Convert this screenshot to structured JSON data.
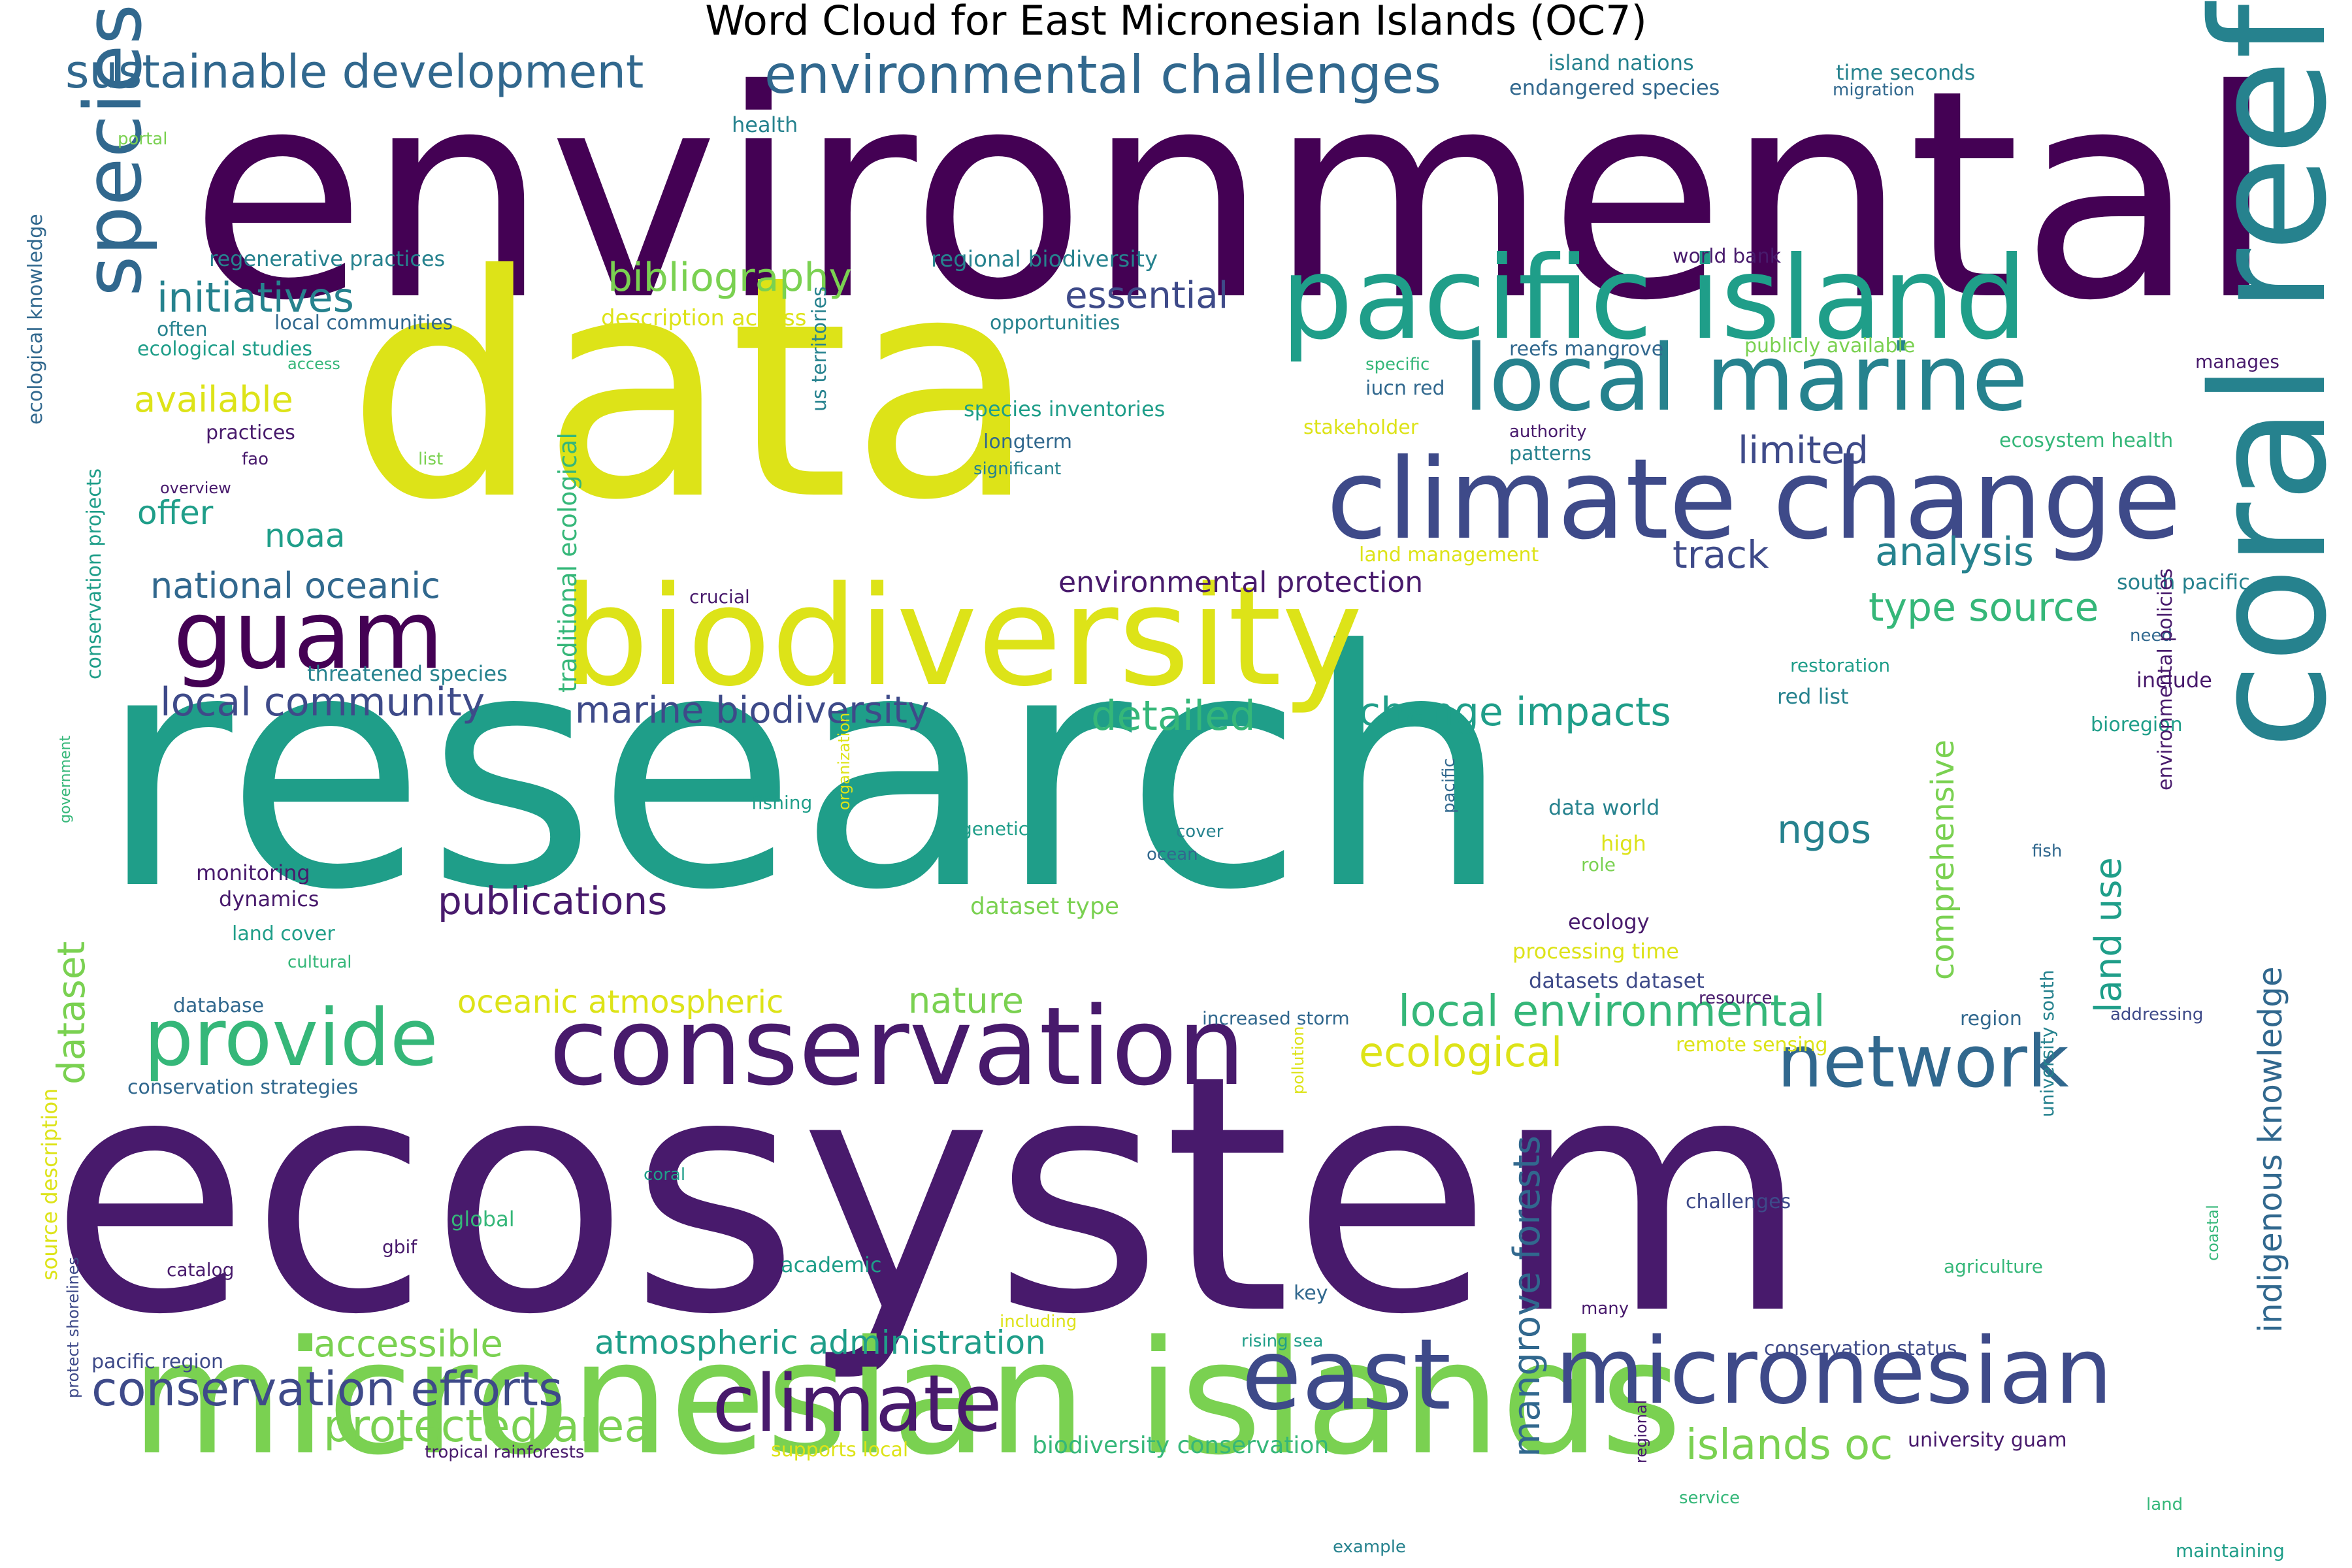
{
  "title": "Word Cloud for East Micronesian Islands (OC7)",
  "colors": {
    "purple_dark": "#440154",
    "purple": "#481a6c",
    "indigo": "#3e4a89",
    "slate": "#31688e",
    "teal": "#26828e",
    "green_teal": "#1f9e89",
    "green": "#35b779",
    "lime": "#7ad151",
    "yellow": "#dde318"
  },
  "words": [
    {
      "t": "environmental",
      "c": "purple_dark"
    },
    {
      "t": "data",
      "c": "yellow"
    },
    {
      "t": "research",
      "c": "green_teal"
    },
    {
      "t": "ecosystem",
      "c": "purple"
    },
    {
      "t": "micronesian islands",
      "c": "lime"
    },
    {
      "t": "coral reef",
      "c": "teal"
    },
    {
      "t": "biodiversity",
      "c": "yellow"
    },
    {
      "t": "climate change",
      "c": "indigo"
    },
    {
      "t": "pacific island",
      "c": "green_teal"
    },
    {
      "t": "conservation",
      "c": "purple"
    },
    {
      "t": "local marine",
      "c": "teal"
    },
    {
      "t": "east",
      "c": "indigo"
    },
    {
      "t": "micronesian",
      "c": "indigo"
    },
    {
      "t": "guam",
      "c": "purple_dark"
    },
    {
      "t": "provide",
      "c": "green"
    },
    {
      "t": "species",
      "c": "slate"
    },
    {
      "t": "climate",
      "c": "purple"
    },
    {
      "t": "network",
      "c": "slate"
    },
    {
      "t": "environmental challenges",
      "c": "slate"
    },
    {
      "t": "sustainable development",
      "c": "slate"
    },
    {
      "t": "conservation efforts",
      "c": "indigo"
    },
    {
      "t": "local environmental",
      "c": "green"
    },
    {
      "t": "protected area",
      "c": "lime"
    },
    {
      "t": "islands oc",
      "c": "lime"
    },
    {
      "t": "initiatives",
      "c": "teal"
    },
    {
      "t": "bibliography",
      "c": "lime"
    },
    {
      "t": "local community",
      "c": "indigo"
    },
    {
      "t": "publications",
      "c": "purple"
    },
    {
      "t": "dataset",
      "c": "lime"
    },
    {
      "t": "ngos",
      "c": "teal"
    },
    {
      "t": "analysis",
      "c": "teal"
    },
    {
      "t": "type source",
      "c": "green"
    },
    {
      "t": "change impacts",
      "c": "green_teal"
    },
    {
      "t": "detailed",
      "c": "green"
    },
    {
      "t": "marine biodiversity",
      "c": "indigo"
    },
    {
      "t": "available",
      "c": "yellow"
    },
    {
      "t": "essential",
      "c": "indigo"
    },
    {
      "t": "limited",
      "c": "indigo"
    },
    {
      "t": "national oceanic",
      "c": "slate"
    },
    {
      "t": "accessible",
      "c": "lime"
    },
    {
      "t": "atmospheric administration",
      "c": "green_teal"
    },
    {
      "t": "oceanic atmospheric",
      "c": "yellow"
    },
    {
      "t": "nature",
      "c": "lime"
    },
    {
      "t": "ecological",
      "c": "yellow"
    },
    {
      "t": "mangrove forests",
      "c": "slate"
    },
    {
      "t": "indigenous knowledge",
      "c": "slate"
    },
    {
      "t": "comprehensive",
      "c": "lime"
    },
    {
      "t": "land use",
      "c": "green_teal"
    },
    {
      "t": "track",
      "c": "indigo"
    },
    {
      "t": "noaa",
      "c": "green_teal"
    },
    {
      "t": "offer",
      "c": "green_teal"
    },
    {
      "t": "environmental protection",
      "c": "purple"
    },
    {
      "t": "traditional ecological",
      "c": "green"
    },
    {
      "t": "island nations",
      "c": "teal"
    },
    {
      "t": "endangered species",
      "c": "slate"
    },
    {
      "t": "time seconds",
      "c": "teal"
    },
    {
      "t": "migration",
      "c": "slate"
    },
    {
      "t": "health",
      "c": "teal"
    },
    {
      "t": "portal",
      "c": "lime"
    },
    {
      "t": "regenerative practices",
      "c": "teal"
    },
    {
      "t": "regional biodiversity",
      "c": "teal"
    },
    {
      "t": "world bank",
      "c": "purple"
    },
    {
      "t": "often",
      "c": "teal"
    },
    {
      "t": "local communities",
      "c": "slate"
    },
    {
      "t": "ecological studies",
      "c": "green_teal"
    },
    {
      "t": "access",
      "c": "green"
    },
    {
      "t": "description access",
      "c": "yellow"
    },
    {
      "t": "opportunities",
      "c": "teal"
    },
    {
      "t": "specific",
      "c": "green"
    },
    {
      "t": "reefs mangrove",
      "c": "slate"
    },
    {
      "t": "publicly available",
      "c": "lime"
    },
    {
      "t": "iucn red",
      "c": "slate"
    },
    {
      "t": "manages",
      "c": "purple"
    },
    {
      "t": "species inventories",
      "c": "green_teal"
    },
    {
      "t": "stakeholder",
      "c": "yellow"
    },
    {
      "t": "authority",
      "c": "purple"
    },
    {
      "t": "practices",
      "c": "purple"
    },
    {
      "t": "longterm",
      "c": "slate"
    },
    {
      "t": "ecosystem health",
      "c": "green"
    },
    {
      "t": "fao",
      "c": "purple"
    },
    {
      "t": "list",
      "c": "lime"
    },
    {
      "t": "patterns",
      "c": "teal"
    },
    {
      "t": "overview",
      "c": "purple"
    },
    {
      "t": "significant",
      "c": "teal"
    },
    {
      "t": "us territories",
      "c": "teal"
    },
    {
      "t": "land management",
      "c": "yellow"
    },
    {
      "t": "ecological knowledge",
      "c": "slate"
    },
    {
      "t": "crucial",
      "c": "purple"
    },
    {
      "t": "south pacific",
      "c": "teal"
    },
    {
      "t": "threatened species",
      "c": "teal"
    },
    {
      "t": "restoration",
      "c": "green_teal"
    },
    {
      "t": "need",
      "c": "slate"
    },
    {
      "t": "include",
      "c": "purple"
    },
    {
      "t": "red list",
      "c": "teal"
    },
    {
      "t": "bioregion",
      "c": "green_teal"
    },
    {
      "t": "conservation projects",
      "c": "green_teal"
    },
    {
      "t": "fishing",
      "c": "green_teal"
    },
    {
      "t": "genetic",
      "c": "green_teal"
    },
    {
      "t": "cover",
      "c": "teal"
    },
    {
      "t": "ocean",
      "c": "slate"
    },
    {
      "t": "data world",
      "c": "teal"
    },
    {
      "t": "high",
      "c": "yellow"
    },
    {
      "t": "role",
      "c": "lime"
    },
    {
      "t": "organization",
      "c": "yellow"
    },
    {
      "t": "pacific",
      "c": "slate"
    },
    {
      "t": "fish",
      "c": "slate"
    },
    {
      "t": "environmental policies",
      "c": "purple"
    },
    {
      "t": "government",
      "c": "green"
    },
    {
      "t": "monitoring",
      "c": "purple"
    },
    {
      "t": "dynamics",
      "c": "purple"
    },
    {
      "t": "dataset type",
      "c": "lime"
    },
    {
      "t": "ecology",
      "c": "purple"
    },
    {
      "t": "land cover",
      "c": "green_teal"
    },
    {
      "t": "processing time",
      "c": "yellow"
    },
    {
      "t": "cultural",
      "c": "green"
    },
    {
      "t": "datasets dataset",
      "c": "indigo"
    },
    {
      "t": "database",
      "c": "slate"
    },
    {
      "t": "increased storm",
      "c": "slate"
    },
    {
      "t": "resource",
      "c": "purple"
    },
    {
      "t": "region",
      "c": "slate"
    },
    {
      "t": "addressing",
      "c": "indigo"
    },
    {
      "t": "remote sensing",
      "c": "yellow"
    },
    {
      "t": "conservation strategies",
      "c": "slate"
    },
    {
      "t": "pollution",
      "c": "yellow"
    },
    {
      "t": "university south",
      "c": "teal"
    },
    {
      "t": "coral",
      "c": "green_teal"
    },
    {
      "t": "challenges",
      "c": "indigo"
    },
    {
      "t": "global",
      "c": "green"
    },
    {
      "t": "gbif",
      "c": "purple"
    },
    {
      "t": "catalog",
      "c": "purple"
    },
    {
      "t": "academic",
      "c": "green_teal"
    },
    {
      "t": "agriculture",
      "c": "green"
    },
    {
      "t": "key",
      "c": "slate"
    },
    {
      "t": "many",
      "c": "purple"
    },
    {
      "t": "coastal",
      "c": "green"
    },
    {
      "t": "including",
      "c": "yellow"
    },
    {
      "t": "rising sea",
      "c": "green_teal"
    },
    {
      "t": "conservation status",
      "c": "indigo"
    },
    {
      "t": "source description",
      "c": "yellow"
    },
    {
      "t": "protect shorelines",
      "c": "indigo"
    },
    {
      "t": "pacific region",
      "c": "indigo"
    },
    {
      "t": "tropical rainforests",
      "c": "purple"
    },
    {
      "t": "supports local",
      "c": "yellow"
    },
    {
      "t": "biodiversity conservation",
      "c": "green"
    },
    {
      "t": "university guam",
      "c": "purple"
    },
    {
      "t": "regional",
      "c": "purple"
    },
    {
      "t": "service",
      "c": "green"
    },
    {
      "t": "land",
      "c": "green"
    },
    {
      "t": "example",
      "c": "teal"
    },
    {
      "t": "maintaining",
      "c": "green_teal"
    }
  ]
}
